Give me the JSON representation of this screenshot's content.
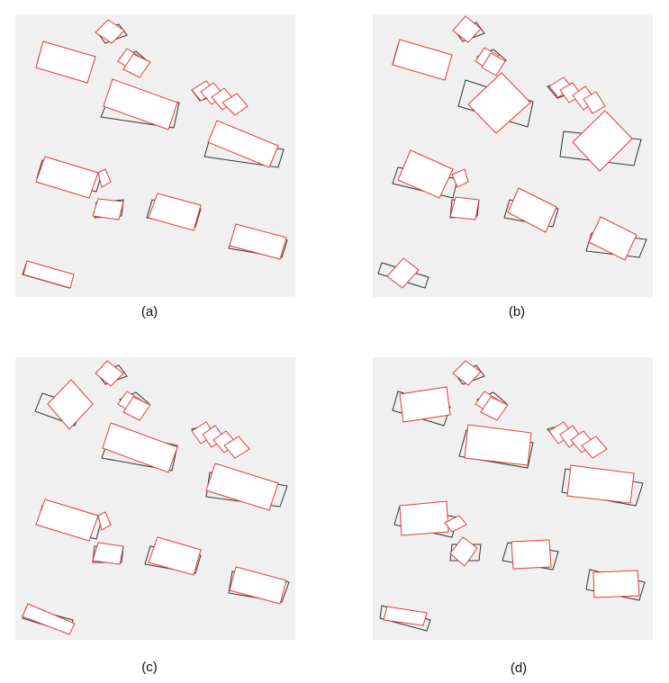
{
  "figure": {
    "panels": [
      {
        "id": "a",
        "caption": "(a)"
      },
      {
        "id": "b",
        "caption": "(b)"
      },
      {
        "id": "c",
        "caption": "(c)"
      },
      {
        "id": "d",
        "caption": "(d)"
      }
    ]
  },
  "colors": {
    "background": "#f0f0f0",
    "ground_truth_box": "#333333",
    "predicted_box": "#e8393a",
    "predicted_fill": "#ffffff"
  }
}
